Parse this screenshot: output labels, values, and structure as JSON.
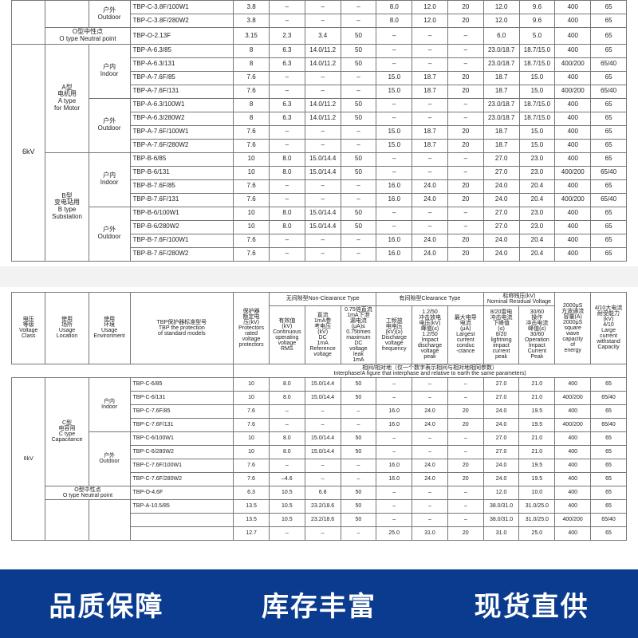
{
  "footer": {
    "bg_color": "#0a3b8f",
    "text1": "品质保障",
    "text2": "库存丰富",
    "text3": "现货直供"
  },
  "labels": {
    "indoor_cn": "户内",
    "indoor_en": "Indoor",
    "outdoor_cn": "户外",
    "outdoor_en": "Outdoor",
    "otype_cn": "O型中性点",
    "otype_en": "O type Neutral point",
    "vc6": "6kV",
    "a_cn1": "A型",
    "a_cn2": "电机用",
    "a_en1": "A type",
    "a_en2": "for Motor",
    "b_cn1": "B型",
    "b_cn2": "变电站用",
    "b_en1": "B type",
    "b_en2": "Substation",
    "c_cn1": "C型",
    "c_cn2": "电容用",
    "c_en1": "C type",
    "c_en2": "Capacitance"
  },
  "header2": {
    "vc": "电压\n等级\nVoltage\nClass",
    "loc": "使用\n场所\nUsage\nLocation",
    "env": "使用\n环境\nUsage\nEnvironment",
    "model": "TBP保护器标准型号\nTBP the protection\nof standard models",
    "nc_group": "无间隙型Non-Clearance Type",
    "cl_group": "有间隙型Clearance Type",
    "res_group": "标称残压(kV)\nNominal Residual Voltage",
    "c5": "保护器\n额定电\n压(kV)\nProtectors\nrated\nvoltage\nprotectors",
    "c6": "有效值\n(kV)\nContinuous\noperating\nvoltage\nRMS",
    "c7": "直流\n1mA参\n考电压\n(kV)\nDC\n1mA\nReference\nvoltage",
    "c8": "0.75倍直流\n1mA下泄\n漏电流\n(μA)≤\n0.75times\nmaximum\nDC\nvoltage\nleak\n1mA",
    "c9": "工频放\n电电压\n(kV)(≥)\nDischarge\nvoltage\nfrequency",
    "c10": "1.2/50\n冲击放电\n电压(kV)\n峰值(≤)\n1.2/50\nImpact\ndischarge\nvoltage\npeak",
    "c11": "最大电导\n电流\n(μA)\nLargest\ncurrent\nconduc\n-ctance",
    "c12": "8/20雷电\n冲击电流\n下峰值\n(≤)\n8/20\nlightning\nimpact\ncurrent\npeak",
    "c13": "30/60\n操作\n冲击电流\n峰值(≤)\n30/60\nOperation\nImpact\nCurrent\nPeak",
    "c14": "2000μS\n方波通流\n容量(A)\n2000μS\nsquare\nwave\ncapacity\nof\nenergy",
    "c15": "4/10大电流\n耐受能力\n(kV)\n4/10\nLarge\ncurrent\nwithstand\nCapacity",
    "interphase": "相间/相对地（仅一个数字表示相间与相对地相同参数）\nInterphase/A figure that interphase and relative to earth the same parameters)"
  },
  "table1_top": [
    {
      "env": "outdoor",
      "model": "TBP-C-3.8F/100W1",
      "v": [
        "3.8",
        "–",
        "–",
        "–",
        "8.0",
        "12.0",
        "20",
        "12.0",
        "9.6",
        "400",
        "65"
      ]
    },
    {
      "env": "outdoor",
      "model": "TBP-C-3.8F/280W2",
      "v": [
        "3.8",
        "–",
        "–",
        "–",
        "8.0",
        "12.0",
        "20",
        "12.0",
        "9.6",
        "400",
        "65"
      ]
    }
  ],
  "table1_o1": {
    "model": "TBP-O-2.13F",
    "v": [
      "3.15",
      "2.3",
      "3.4",
      "50",
      "–",
      "–",
      "–",
      "6.0",
      "5.0",
      "400",
      "65"
    ]
  },
  "table1_a_in": [
    {
      "model": "TBP-A-6.3/85",
      "v": [
        "8",
        "6.3",
        "14.0/11.2",
        "50",
        "–",
        "–",
        "–",
        "23.0/18.7",
        "18.7/15.0",
        "400",
        "65"
      ]
    },
    {
      "model": "TBP-A-6.3/131",
      "v": [
        "8",
        "6.3",
        "14.0/11.2",
        "50",
        "–",
        "–",
        "–",
        "23.0/18.7",
        "18.7/15.0",
        "400/200",
        "65/40"
      ]
    },
    {
      "model": "TBP-A-7.6F/85",
      "v": [
        "7.6",
        "–",
        "–",
        "–",
        "15.0",
        "18.7",
        "20",
        "18.7",
        "15.0",
        "400",
        "65"
      ]
    },
    {
      "model": "TBP-A-7.6F/131",
      "v": [
        "7.6",
        "–",
        "–",
        "–",
        "15.0",
        "18.7",
        "20",
        "18.7",
        "15.0",
        "400/200",
        "65/40"
      ]
    }
  ],
  "table1_a_out": [
    {
      "model": "TBP-A-6.3/100W1",
      "v": [
        "8",
        "6.3",
        "14.0/11.2",
        "50",
        "–",
        "–",
        "–",
        "23.0/18.7",
        "18.7/15.0",
        "400",
        "65"
      ]
    },
    {
      "model": "TBP-A-6.3/280W2",
      "v": [
        "8",
        "6.3",
        "14.0/11.2",
        "50",
        "–",
        "–",
        "–",
        "23.0/18.7",
        "18.7/15.0",
        "400",
        "65"
      ]
    },
    {
      "model": "TBP-A-7.6F/100W1",
      "v": [
        "7.6",
        "–",
        "–",
        "–",
        "15.0",
        "18.7",
        "20",
        "18.7",
        "15.0",
        "400",
        "65"
      ]
    },
    {
      "model": "TBP-A-7.6F/280W2",
      "v": [
        "7.6",
        "–",
        "–",
        "–",
        "15.0",
        "18.7",
        "20",
        "18.7",
        "15.0",
        "400",
        "65"
      ]
    }
  ],
  "table1_b_in": [
    {
      "model": "TBP-B-6/85",
      "v": [
        "10",
        "8.0",
        "15.0/14.4",
        "50",
        "–",
        "–",
        "–",
        "27.0",
        "23.0",
        "400",
        "65"
      ]
    },
    {
      "model": "TBP-B-6/131",
      "v": [
        "10",
        "8.0",
        "15.0/14.4",
        "50",
        "–",
        "–",
        "–",
        "27.0",
        "23.0",
        "400/200",
        "65/40"
      ]
    },
    {
      "model": "TBP-B-7.6F/85",
      "v": [
        "7.6",
        "–",
        "–",
        "–",
        "16.0",
        "24.0",
        "20",
        "24.0",
        "20.4",
        "400",
        "65"
      ]
    },
    {
      "model": "TBP-B-7.6F/131",
      "v": [
        "7.6",
        "–",
        "–",
        "–",
        "16.0",
        "24.0",
        "20",
        "24.0",
        "20.4",
        "400/200",
        "65/40"
      ]
    }
  ],
  "table1_b_out": [
    {
      "model": "TBP-B-6/100W1",
      "v": [
        "10",
        "8.0",
        "15.0/14.4",
        "50",
        "–",
        "–",
        "–",
        "27.0",
        "23.0",
        "400",
        "65"
      ]
    },
    {
      "model": "TBP-B-6/280W2",
      "v": [
        "10",
        "8.0",
        "15.0/14.4",
        "50",
        "–",
        "–",
        "–",
        "27.0",
        "23.0",
        "400",
        "65"
      ]
    },
    {
      "model": "TBP-B-7.6F/100W1",
      "v": [
        "7.6",
        "–",
        "–",
        "–",
        "16.0",
        "24.0",
        "20",
        "24.0",
        "20.4",
        "400",
        "65"
      ]
    },
    {
      "model": "TBP-B-7.6F/280W2",
      "v": [
        "7.6",
        "–",
        "–",
        "–",
        "16.0",
        "24.0",
        "20",
        "24.0",
        "20.4",
        "400",
        "65"
      ]
    }
  ],
  "table2_c_in": [
    {
      "model": "TBP-C-6/85",
      "v": [
        "10",
        "8.0",
        "15.0/14.4",
        "50",
        "–",
        "–",
        "–",
        "27.0",
        "21.0",
        "400",
        "65"
      ]
    },
    {
      "model": "TBP-C-6/131",
      "v": [
        "10",
        "8.0",
        "15.0/14.4",
        "50",
        "–",
        "–",
        "–",
        "27.0",
        "21.0",
        "400/200",
        "65/40"
      ]
    },
    {
      "model": "TBP-C-7.6F/85",
      "v": [
        "7.6",
        "–",
        "–",
        "–",
        "16.0",
        "24.0",
        "20",
        "24.0",
        "19.5",
        "400",
        "65"
      ]
    },
    {
      "model": "TBP-C-7.6F/131",
      "v": [
        "7.6",
        "–",
        "–",
        "–",
        "16.0",
        "24.0",
        "20",
        "24.0",
        "19.5",
        "400/200",
        "65/40"
      ]
    }
  ],
  "table2_c_out": [
    {
      "model": "TBP-C-6/100W1",
      "v": [
        "10",
        "8.0",
        "15.0/14.4",
        "50",
        "–",
        "–",
        "–",
        "27.0",
        "21.0",
        "400",
        "65"
      ]
    },
    {
      "model": "TBP-C-6/280W2",
      "v": [
        "10",
        "8.0",
        "15.0/14.4",
        "50",
        "–",
        "–",
        "–",
        "27.0",
        "21.0",
        "400",
        "65"
      ]
    },
    {
      "model": "TBP-C-7.6F/100W1",
      "v": [
        "7.6",
        "–",
        "–",
        "–",
        "16.0",
        "24.0",
        "20",
        "24.0",
        "19.5",
        "400",
        "65"
      ]
    },
    {
      "model": "TBP-C-7.6F/280W2",
      "v": [
        "7.6",
        "–4.6",
        "–",
        "–",
        "16.0",
        "24.0",
        "20",
        "24.0",
        "19.5",
        "400",
        "65"
      ]
    }
  ],
  "table2_o": {
    "model": "TBP-O-4.6F",
    "v": [
      "6.3",
      "10.5",
      "6.8",
      "50",
      "–",
      "–",
      "–",
      "12.0",
      "10.0",
      "400",
      "65"
    ]
  },
  "table2_bottom": [
    {
      "model": "TBP-A-10.5/85",
      "v": [
        "13.5",
        "10.5",
        "23.2/18.6",
        "50",
        "–",
        "–",
        "–",
        "38.0/31.0",
        "31.0/25.0",
        "400",
        "65"
      ]
    },
    {
      "model": "",
      "v": [
        "13.5",
        "10.5",
        "23.2/18.6",
        "50",
        "–",
        "–",
        "–",
        "38.0/31.0",
        "31.0/25.0",
        "400/200",
        "65/40"
      ]
    },
    {
      "model": "",
      "v": [
        "12.7",
        "–",
        "–",
        "–",
        "25.0",
        "31.0",
        "20",
        "31.0",
        "25.0",
        "400",
        "65"
      ]
    }
  ]
}
